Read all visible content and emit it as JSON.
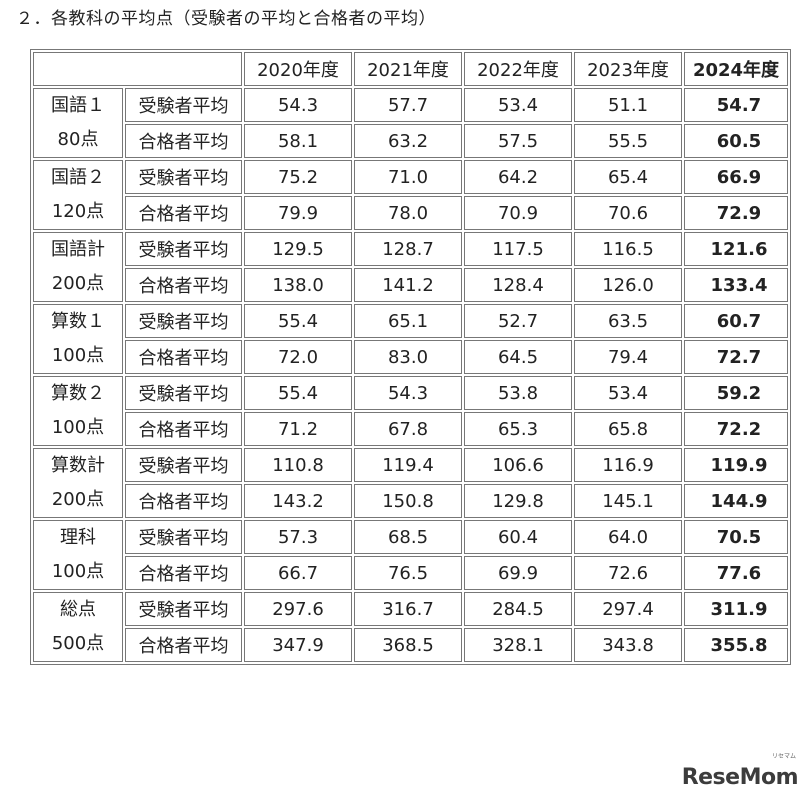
{
  "heading": "２．各教科の平均点（受験者の平均と合格者の平均）",
  "years": [
    "2020年度",
    "2021年度",
    "2022年度",
    "2023年度",
    "2024年度"
  ],
  "rows": [
    {
      "subject": "国語１",
      "points": "80点",
      "r1": {
        "kind": "受験者平均",
        "v": [
          "54.3",
          "57.7",
          "53.4",
          "51.1",
          "54.7"
        ]
      },
      "r2": {
        "kind": "合格者平均",
        "v": [
          "58.1",
          "63.2",
          "57.5",
          "55.5",
          "60.5"
        ]
      }
    },
    {
      "subject": "国語２",
      "points": "120点",
      "r1": {
        "kind": "受験者平均",
        "v": [
          "75.2",
          "71.0",
          "64.2",
          "65.4",
          "66.9"
        ]
      },
      "r2": {
        "kind": "合格者平均",
        "v": [
          "79.9",
          "78.0",
          "70.9",
          "70.6",
          "72.9"
        ]
      }
    },
    {
      "subject": "国語計",
      "points": "200点",
      "r1": {
        "kind": "受験者平均",
        "v": [
          "129.5",
          "128.7",
          "117.5",
          "116.5",
          "121.6"
        ]
      },
      "r2": {
        "kind": "合格者平均",
        "v": [
          "138.0",
          "141.2",
          "128.4",
          "126.0",
          "133.4"
        ]
      }
    },
    {
      "subject": "算数１",
      "points": "100点",
      "r1": {
        "kind": "受験者平均",
        "v": [
          "55.4",
          "65.1",
          "52.7",
          "63.5",
          "60.7"
        ]
      },
      "r2": {
        "kind": "合格者平均",
        "v": [
          "72.0",
          "83.0",
          "64.5",
          "79.4",
          "72.7"
        ]
      }
    },
    {
      "subject": "算数２",
      "points": "100点",
      "r1": {
        "kind": "受験者平均",
        "v": [
          "55.4",
          "54.3",
          "53.8",
          "53.4",
          "59.2"
        ]
      },
      "r2": {
        "kind": "合格者平均",
        "v": [
          "71.2",
          "67.8",
          "65.3",
          "65.8",
          "72.2"
        ]
      }
    },
    {
      "subject": "算数計",
      "points": "200点",
      "r1": {
        "kind": "受験者平均",
        "v": [
          "110.8",
          "119.4",
          "106.6",
          "116.9",
          "119.9"
        ]
      },
      "r2": {
        "kind": "合格者平均",
        "v": [
          "143.2",
          "150.8",
          "129.8",
          "145.1",
          "144.9"
        ]
      }
    },
    {
      "subject": "理科",
      "points": "100点",
      "r1": {
        "kind": "受験者平均",
        "v": [
          "57.3",
          "68.5",
          "60.4",
          "64.0",
          "70.5"
        ]
      },
      "r2": {
        "kind": "合格者平均",
        "v": [
          "66.7",
          "76.5",
          "69.9",
          "72.6",
          "77.6"
        ]
      }
    },
    {
      "subject": "総点",
      "points": "500点",
      "r1": {
        "kind": "受験者平均",
        "v": [
          "297.6",
          "316.7",
          "284.5",
          "297.4",
          "311.9"
        ]
      },
      "r2": {
        "kind": "合格者平均",
        "v": [
          "347.9",
          "368.5",
          "328.1",
          "343.8",
          "355.8"
        ]
      }
    }
  ],
  "logo": {
    "text": "ReseMom",
    "sub": "リセマム"
  }
}
